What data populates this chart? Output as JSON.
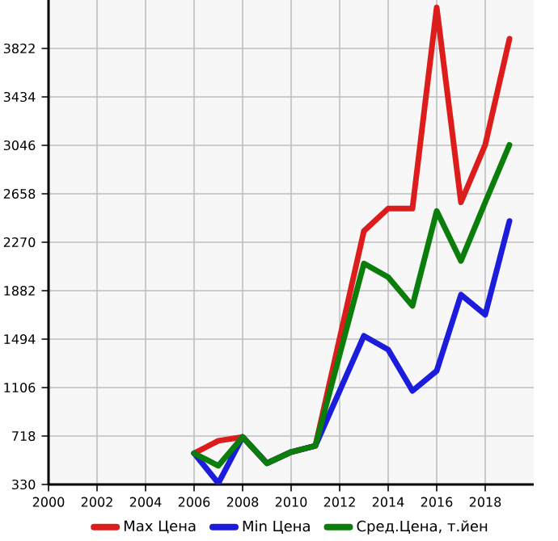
{
  "chart_data": {
    "type": "line",
    "x": [
      2006,
      2007,
      2008,
      2009,
      2010,
      2011,
      2013,
      2014,
      2015,
      2016,
      2017,
      2018,
      2019
    ],
    "series": [
      {
        "name": "Max Цена",
        "color": "#dd1c1c",
        "values": [
          580,
          680,
          710,
          500,
          590,
          640,
          2360,
          2540,
          2540,
          4150,
          2590,
          3050,
          3900
        ]
      },
      {
        "name": "Min Цена",
        "color": "#1c1cdd",
        "values": [
          580,
          340,
          710,
          500,
          590,
          640,
          1520,
          1410,
          1080,
          1240,
          1850,
          1690,
          2440
        ]
      },
      {
        "name": "Сред.Цена, т.йен",
        "color": "#0a7d0a",
        "values": [
          580,
          480,
          710,
          500,
          590,
          640,
          2100,
          1990,
          1760,
          2520,
          2120,
          2590,
          3050
        ]
      }
    ],
    "xlim": [
      2000,
      2020
    ],
    "xticks": [
      2000,
      2002,
      2004,
      2006,
      2008,
      2010,
      2012,
      2014,
      2016,
      2018
    ],
    "ylim": [
      330,
      4210
    ],
    "yticks": [
      330,
      718,
      1106,
      1494,
      1882,
      2270,
      2658,
      3046,
      3434,
      3822
    ],
    "grid": true,
    "legend": "bottom",
    "marker": "none",
    "line_style": "solid"
  }
}
